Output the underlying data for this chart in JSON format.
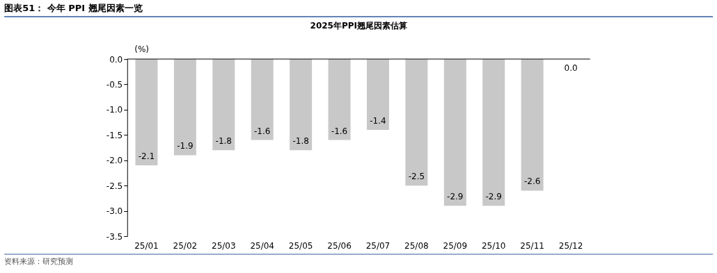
{
  "chart_data": {
    "type": "bar",
    "title": "图表51： 今年 PPI 翘尾因素一览",
    "subtitle": "2025年PPI翘尾因素估算",
    "ylabel": "(%)",
    "categories": [
      "25/01",
      "25/02",
      "25/03",
      "25/04",
      "25/05",
      "25/06",
      "25/07",
      "25/08",
      "25/09",
      "25/10",
      "25/11",
      "25/12"
    ],
    "values": [
      -2.1,
      -1.9,
      -1.8,
      -1.6,
      -1.8,
      -1.6,
      -1.4,
      -2.5,
      -2.9,
      -2.9,
      -2.6,
      0.0
    ],
    "color": "#c8c8c8",
    "ylim": [
      -3.5,
      0
    ],
    "yticks": [
      {
        "value": -3.5,
        "label": "-3.5"
      },
      {
        "value": -3,
        "label": "-3.0"
      },
      {
        "value": -2.5,
        "label": "-2.5"
      },
      {
        "value": -2,
        "label": "-2.0"
      },
      {
        "value": -1.5,
        "label": "-1.5"
      },
      {
        "value": -1,
        "label": "-1.0"
      },
      {
        "value": -0.5,
        "label": "-0.5"
      },
      {
        "value": 0,
        "label": "0.0"
      }
    ],
    "value_labels": [
      "-2.1",
      "-1.9",
      "-1.8",
      "-1.6",
      "-1.8",
      "-1.6",
      "-1.4",
      "-2.5",
      "-2.9",
      "-2.9",
      "-2.6",
      "0.0"
    ],
    "grid": false,
    "annotations": [
      "资料来源：研究预测"
    ]
  }
}
